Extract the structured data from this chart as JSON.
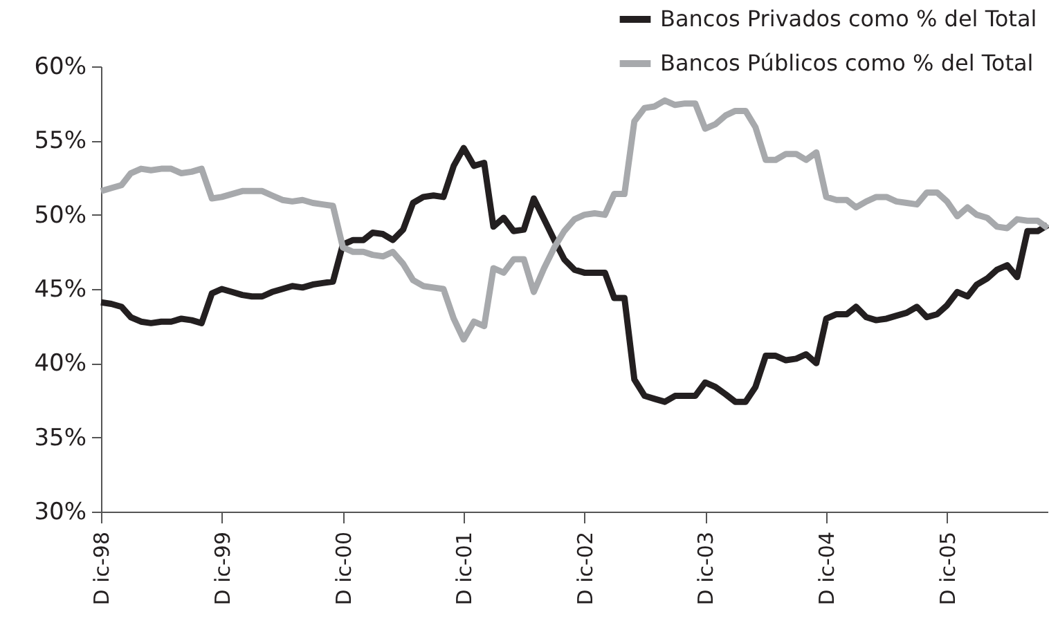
{
  "chart_data": {
    "type": "line",
    "x": [
      "1998-12",
      "1999-01",
      "1999-02",
      "1999-03",
      "1999-04",
      "1999-05",
      "1999-06",
      "1999-07",
      "1999-08",
      "1999-09",
      "1999-10",
      "1999-11",
      "1999-12",
      "2000-01",
      "2000-02",
      "2000-03",
      "2000-04",
      "2000-05",
      "2000-06",
      "2000-07",
      "2000-08",
      "2000-09",
      "2000-10",
      "2000-11",
      "2000-12",
      "2001-01",
      "2001-02",
      "2001-03",
      "2001-04",
      "2001-05",
      "2001-06",
      "2001-07",
      "2001-08",
      "2001-09",
      "2001-10",
      "2001-11",
      "2001-12",
      "2002-01",
      "2002-02",
      "2002-03",
      "2002-04",
      "2002-05",
      "2002-06",
      "2002-07",
      "2002-08",
      "2002-09",
      "2002-10",
      "2002-11",
      "2002-12",
      "2003-01",
      "2003-02",
      "2003-03",
      "2003-04",
      "2003-05",
      "2003-06",
      "2003-07",
      "2003-08",
      "2003-09",
      "2003-10",
      "2003-11",
      "2003-12",
      "2004-01",
      "2004-02",
      "2004-03",
      "2004-04",
      "2004-05",
      "2004-06",
      "2004-07",
      "2004-08",
      "2004-09",
      "2004-10",
      "2004-11",
      "2004-12",
      "2005-01",
      "2005-02",
      "2005-03",
      "2005-04",
      "2005-05",
      "2005-06",
      "2005-07",
      "2005-08",
      "2005-09",
      "2005-10",
      "2005-11",
      "2005-12",
      "2006-01",
      "2006-02",
      "2006-03",
      "2006-04",
      "2006-05",
      "2006-06",
      "2006-07",
      "2006-08",
      "2006-09",
      "2006-10"
    ],
    "series": [
      {
        "name": "Bancos Privados como % del Total",
        "color": "#231f20",
        "values": [
          44.1,
          44.0,
          43.8,
          43.1,
          42.8,
          42.7,
          42.8,
          42.8,
          43.0,
          42.9,
          42.7,
          44.7,
          45.0,
          44.8,
          44.6,
          44.5,
          44.5,
          44.8,
          45.0,
          45.2,
          45.1,
          45.3,
          45.4,
          45.5,
          48.0,
          48.3,
          48.3,
          48.8,
          48.7,
          48.3,
          49.0,
          50.8,
          51.2,
          51.3,
          51.2,
          53.3,
          54.5,
          53.3,
          53.5,
          49.2,
          49.8,
          48.9,
          49.0,
          51.1,
          49.7,
          48.3,
          47.0,
          46.3,
          46.1,
          46.1,
          46.1,
          44.4,
          44.4,
          38.9,
          37.8,
          37.6,
          37.4,
          37.8,
          37.8,
          37.8,
          38.7,
          38.4,
          37.9,
          37.4,
          37.4,
          38.4,
          40.5,
          40.5,
          40.2,
          40.3,
          40.6,
          40.0,
          43.0,
          43.3,
          43.3,
          43.8,
          43.1,
          42.9,
          43.0,
          43.2,
          43.4,
          43.8,
          43.1,
          43.3,
          43.9,
          44.8,
          44.5,
          45.3,
          45.7,
          46.3,
          46.6,
          45.8,
          48.9,
          48.9,
          49.3
        ]
      },
      {
        "name": "Bancos Públicos como % del Total",
        "color": "#a7a9ac",
        "values": [
          51.6,
          51.8,
          52.0,
          52.8,
          53.1,
          53.0,
          53.1,
          53.1,
          52.8,
          52.9,
          53.1,
          51.1,
          51.2,
          51.4,
          51.6,
          51.6,
          51.6,
          51.3,
          51.0,
          50.9,
          51.0,
          50.8,
          50.7,
          50.6,
          47.8,
          47.5,
          47.5,
          47.3,
          47.2,
          47.5,
          46.7,
          45.6,
          45.2,
          45.1,
          45.0,
          43.0,
          41.6,
          42.8,
          42.5,
          46.4,
          46.1,
          47.0,
          47.0,
          44.8,
          46.4,
          47.8,
          48.9,
          49.7,
          50.0,
          50.1,
          50.0,
          51.4,
          51.4,
          56.3,
          57.2,
          57.3,
          57.7,
          57.4,
          57.5,
          57.5,
          55.8,
          56.1,
          56.7,
          57.0,
          57.0,
          55.9,
          53.7,
          53.7,
          54.1,
          54.1,
          53.7,
          54.2,
          51.2,
          51.0,
          51.0,
          50.5,
          50.9,
          51.2,
          51.2,
          50.9,
          50.8,
          50.7,
          51.5,
          51.5,
          50.9,
          49.9,
          50.5,
          50.0,
          49.8,
          49.2,
          49.1,
          49.7,
          49.6,
          49.6,
          49.1
        ]
      }
    ],
    "xlim": [
      "1998-12",
      "2006-10"
    ],
    "xticks": [
      {
        "value": "1998-12",
        "label": "D ic-98"
      },
      {
        "value": "1999-12",
        "label": "D ic-99"
      },
      {
        "value": "2000-12",
        "label": "D ic-00"
      },
      {
        "value": "2001-12",
        "label": "D ic-01"
      },
      {
        "value": "2002-12",
        "label": "D ic-02"
      },
      {
        "value": "2003-12",
        "label": "D ic-03"
      },
      {
        "value": "2004-12",
        "label": "D ic-04"
      },
      {
        "value": "2005-12",
        "label": "D ic-05"
      }
    ],
    "ylim": [
      30,
      60
    ],
    "yticks": [
      {
        "value": 30,
        "label": "30%"
      },
      {
        "value": 35,
        "label": "35%"
      },
      {
        "value": 40,
        "label": "40%"
      },
      {
        "value": 45,
        "label": "45%"
      },
      {
        "value": 50,
        "label": "50%"
      },
      {
        "value": 55,
        "label": "55%"
      },
      {
        "value": 60,
        "label": "60%"
      }
    ],
    "grid": false,
    "legend": "top right"
  }
}
